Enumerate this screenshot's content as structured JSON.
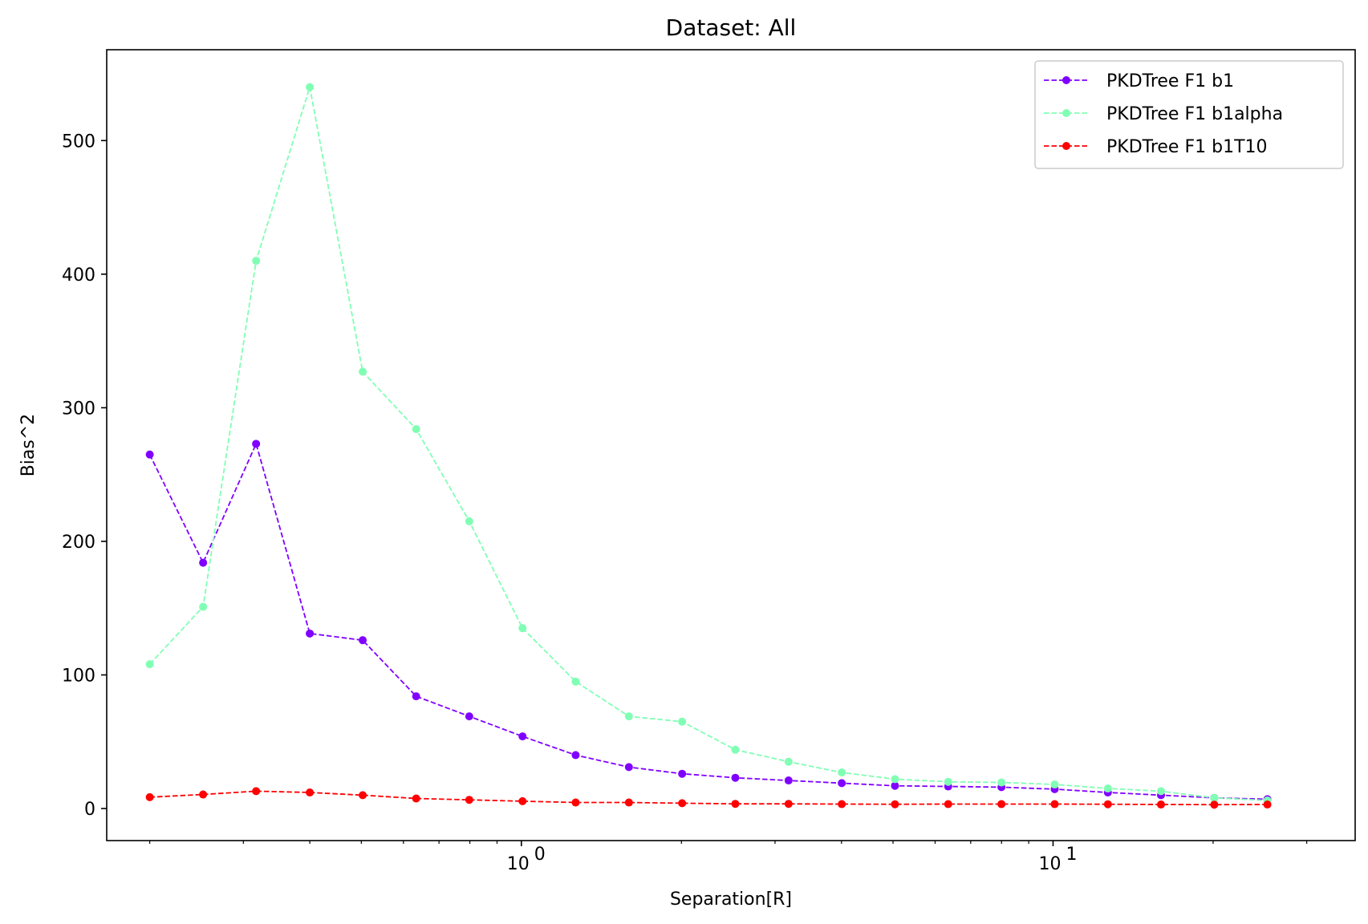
{
  "chart_data": {
    "type": "line",
    "title": "Dataset: All",
    "xlabel": "Separation[R]",
    "ylabel": "Bias^2",
    "xscale": "log",
    "xlim": [
      0.166,
      37.0
    ],
    "ylim": [
      -24,
      568
    ],
    "yticks": [
      0,
      100,
      200,
      300,
      400,
      500
    ],
    "xticks_major": [
      {
        "value": 1,
        "base": "10",
        "exp": "0"
      },
      {
        "value": 10,
        "base": "10",
        "exp": "1"
      }
    ],
    "legend_position": "top-right",
    "line_style": "dashed",
    "marker": "circle",
    "x": [
      0.2,
      0.252,
      0.317,
      0.4,
      0.503,
      0.634,
      0.798,
      1.005,
      1.265,
      1.593,
      2.006,
      2.526,
      3.181,
      4.005,
      5.043,
      6.35,
      7.996,
      10.07,
      12.68,
      15.96,
      20.1,
      25.3
    ],
    "series": [
      {
        "name": "PKDTree F1 b1",
        "color": "#8000ff",
        "values": [
          265,
          184,
          273,
          131,
          126,
          84,
          69,
          54,
          40,
          31,
          26,
          23,
          21,
          19,
          17,
          16.5,
          16,
          14.5,
          12,
          10,
          8,
          7
        ]
      },
      {
        "name": "PKDTree F1 b1alpha",
        "color": "#80ffb4",
        "values": [
          108,
          151,
          410,
          540,
          327,
          284,
          215,
          135,
          95,
          69,
          65,
          44,
          35,
          27,
          22,
          20,
          19.5,
          18,
          15,
          13,
          8,
          6
        ]
      },
      {
        "name": "PKDTree F1 b1T10",
        "color": "#ff0000",
        "values": [
          8.5,
          10.5,
          13,
          12,
          10,
          7.5,
          6.5,
          5.5,
          4.5,
          4.5,
          4,
          3.5,
          3.5,
          3.3,
          3.2,
          3.3,
          3.3,
          3.3,
          3.2,
          3,
          2.9,
          3
        ]
      }
    ]
  }
}
